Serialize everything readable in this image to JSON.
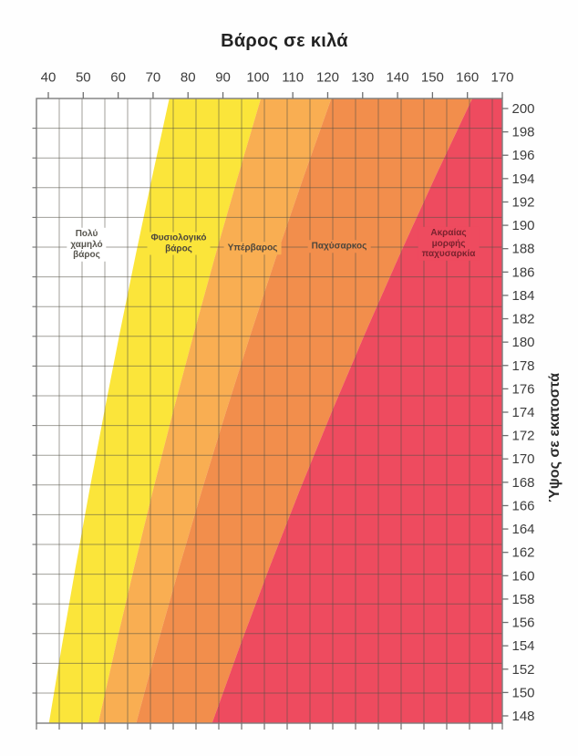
{
  "chart_data": {
    "type": "area",
    "title": "Βάρος σε κιλά",
    "xlabel": "Βάρος σε κιλά",
    "ylabel": "Ύψος σε εκατοστά",
    "grid": true,
    "x_axis": {
      "label": "Βάρος σε κιλά",
      "position": "top",
      "unit": "kg",
      "ticks": [
        40,
        50,
        60,
        70,
        80,
        90,
        100,
        110,
        120,
        130,
        140,
        150,
        160,
        170
      ]
    },
    "y_axis": {
      "label": "Ύψος σε εκατοστά",
      "position": "right",
      "unit": "cm",
      "ticks": [
        200,
        198,
        196,
        194,
        192,
        190,
        188,
        186,
        184,
        182,
        180,
        178,
        176,
        174,
        172,
        170,
        168,
        166,
        164,
        162,
        160,
        158,
        156,
        154,
        152,
        150,
        148
      ]
    },
    "xlim": [
      36.6,
      170
    ],
    "ylim": [
      147.4,
      200.9
    ],
    "bmi_thresholds": [
      18.5,
      25,
      30,
      40
    ],
    "zones": [
      {
        "label": "Πολύ\nχαμηλό\nβάρος",
        "bmi_min": null,
        "bmi_max": 18.5,
        "color": "#ffffff",
        "text_color": "#57554e"
      },
      {
        "label": "Φυσιολογικό\nβάρος",
        "bmi_min": 18.5,
        "bmi_max": 25,
        "color": "#fbe53a",
        "text_color": "#4c463c"
      },
      {
        "label": "Υπέρβαρος",
        "bmi_min": 25,
        "bmi_max": 30,
        "color": "#f9ae52",
        "text_color": "#4c463c"
      },
      {
        "label": "Παχύσαρκος",
        "bmi_min": 30,
        "bmi_max": 40,
        "color": "#f28e4c",
        "text_color": "#4c463c"
      },
      {
        "label": "Ακραίας\nμορφής\nπαχυσαρκία",
        "bmi_min": 40,
        "bmi_max": null,
        "color": "#ee4b5f",
        "text_color": "#7a222e"
      }
    ],
    "style": {
      "grid_color": "rgba(82,80,70,0.55)",
      "border_color": "#7d7d7d",
      "tick_color": "#6f6f6f",
      "tick_label_color": "#3d3d3d"
    }
  }
}
